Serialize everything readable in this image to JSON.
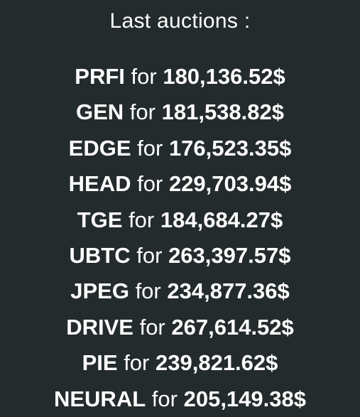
{
  "title": "Last auctions :",
  "connector": "for",
  "auctions": [
    {
      "ticker": "PRFI",
      "price": "180,136.52$"
    },
    {
      "ticker": "GEN",
      "price": "181,538.82$"
    },
    {
      "ticker": "EDGE",
      "price": "176,523.35$"
    },
    {
      "ticker": "HEAD",
      "price": "229,703.94$"
    },
    {
      "ticker": "TGE",
      "price": "184,684.27$"
    },
    {
      "ticker": "UBTC",
      "price": "263,397.57$"
    },
    {
      "ticker": "JPEG",
      "price": "234,877.36$"
    },
    {
      "ticker": "DRIVE",
      "price": "267,614.52$"
    },
    {
      "ticker": "PIE",
      "price": "239,821.62$"
    },
    {
      "ticker": "NEURAL",
      "price": "205,149.38$"
    }
  ],
  "colors": {
    "background": "#242b2c",
    "text": "#ffffff"
  }
}
